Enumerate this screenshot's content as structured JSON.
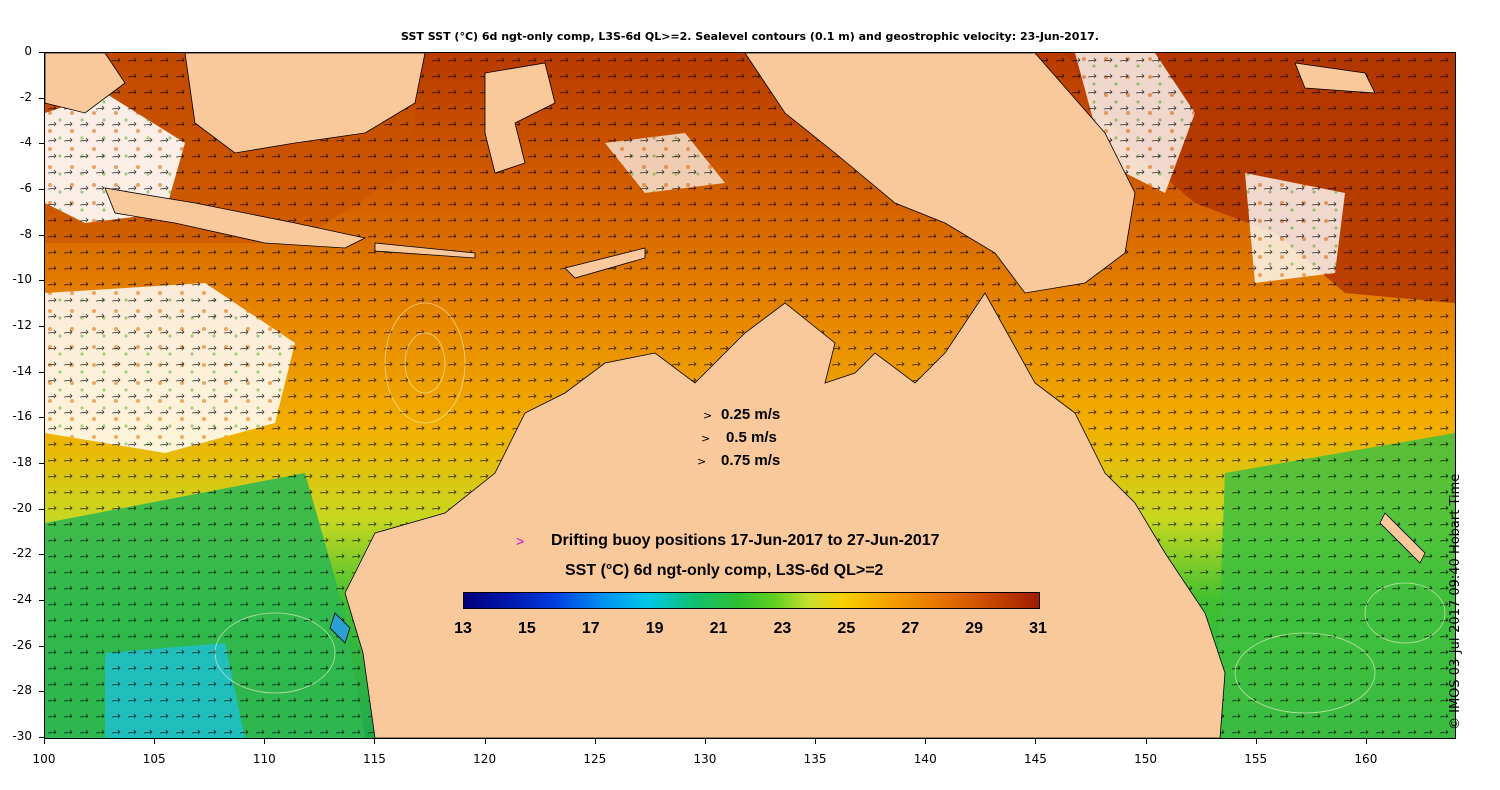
{
  "title": "SST SST (°C) 6d ngt-only comp, L3S-6d QL>=2. Sealevel contours (0.1 m) and geostrophic velocity: 23-Jun-2017.",
  "axes": {
    "x_ticks": [
      "100",
      "105",
      "110",
      "115",
      "120",
      "125",
      "130",
      "135",
      "140",
      "145",
      "150",
      "155",
      "160"
    ],
    "y_ticks": [
      "0",
      "-2",
      "-4",
      "-6",
      "-8",
      "-10",
      "-12",
      "-14",
      "-16",
      "-18",
      "-20",
      "-22",
      "-24",
      "-26",
      "-28",
      "-30"
    ],
    "x_range": [
      100,
      164
    ],
    "y_range": [
      -30,
      0
    ]
  },
  "velocity_legend": {
    "items": [
      "0.25 m/s",
      "0.5 m/s",
      "0.75 m/s"
    ],
    "arrow_glyph": ">"
  },
  "buoy_legend": {
    "glyph": ">",
    "text": "Drifting buoy positions 17-Jun-2017 to 27-Jun-2017",
    "color": "#e000e0"
  },
  "colorbar": {
    "title": "SST (°C) 6d ngt-only comp, L3S-6d QL>=2",
    "tick_labels": [
      "13",
      "15",
      "17",
      "19",
      "21",
      "23",
      "25",
      "27",
      "29",
      "31"
    ],
    "range": [
      13,
      31
    ]
  },
  "side_note": "© IMOS 03-Jul-2017 09:40 Hobart Time",
  "colors": {
    "land": "#f9c89b",
    "warm": "#d86a10",
    "hot": "#b83a00",
    "mid": "#f0a000",
    "cool": "#30b030",
    "cold": "#20b8c0",
    "cloud": "#ffffff"
  }
}
